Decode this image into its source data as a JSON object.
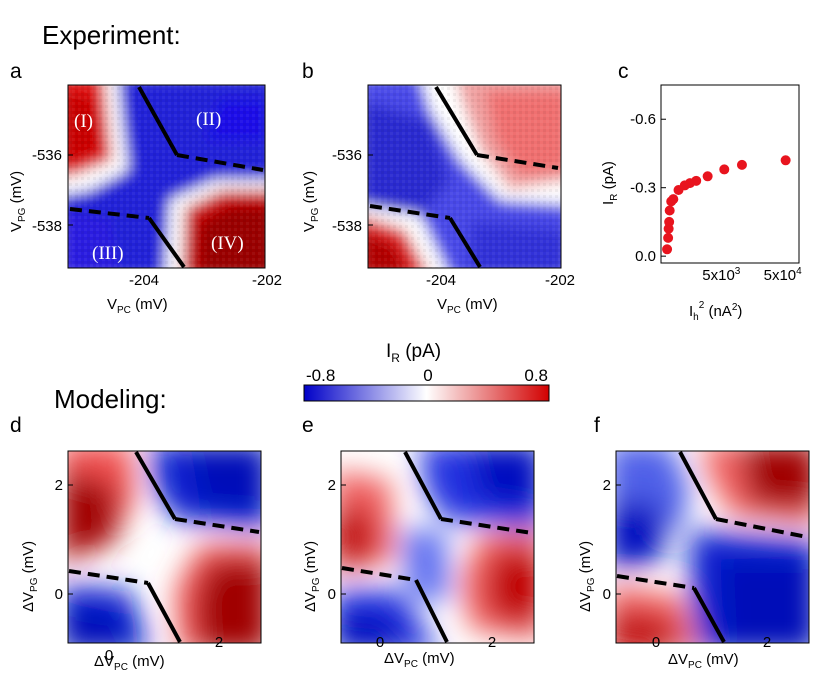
{
  "sections": {
    "experiment": "Experiment:",
    "modeling": "Modeling:"
  },
  "panels": {
    "a": "a",
    "b": "b",
    "c": "c",
    "d": "d",
    "e": "e",
    "f": "f"
  },
  "experiment_axes": {
    "y_label_main": "V",
    "y_label_sub": "PG",
    "y_label_unit": " (mV)",
    "x_label_main": "V",
    "x_label_sub": "PC",
    "x_label_unit": " (mV)",
    "y_ticks": [
      "-536",
      "-538"
    ],
    "x_ticks": [
      "-204",
      "-202"
    ]
  },
  "regions": [
    "(I)",
    "(II)",
    "(III)",
    "(IV)"
  ],
  "modeling_axes": {
    "y_label_main": "ΔV",
    "y_label_sub": "PG",
    "y_label_unit": " (mV)",
    "x_label_main": "ΔV",
    "x_label_sub": "PC",
    "x_label_unit": " (mV)",
    "y_ticks": [
      "2",
      "0"
    ],
    "x_ticks": [
      "0",
      "2"
    ]
  },
  "colorbar": {
    "label_main": "I",
    "label_sub": "R",
    "label_unit": " (pA)",
    "min_label": "-0.8",
    "mid_label": "0",
    "max_label": "0.8",
    "colors": [
      "#0000c8",
      "#ffffff",
      "#d20000"
    ],
    "range": [
      -0.8,
      0.8
    ]
  },
  "chart_data": {
    "type": "scatter",
    "title": "",
    "ylabel_main": "I",
    "ylabel_sub": "R",
    "ylabel_unit": " (pA)",
    "xlabel_main": "I",
    "xlabel_sub": "h",
    "xlabel_sup": "2",
    "xlabel_unit_pre": " (nA",
    "xlabel_unit_sup": "2",
    "xlabel_unit_post": ")",
    "y_ticks": [
      "-0.6",
      "-0.3",
      "0.0"
    ],
    "x_ticks": [
      {
        "base": "5x10",
        "exp": "3"
      },
      {
        "base": "5x10",
        "exp": "4"
      }
    ],
    "ylim": [
      0.03,
      -0.75
    ],
    "y_values": [
      -0.03,
      -0.08,
      -0.12,
      -0.15,
      -0.2,
      -0.24,
      -0.25,
      -0.29,
      -0.31,
      -0.32,
      -0.33,
      -0.35,
      -0.38,
      -0.4,
      -0.42
    ],
    "x_positions_rel": [
      0.02,
      0.03,
      0.035,
      0.04,
      0.045,
      0.06,
      0.08,
      0.13,
      0.19,
      0.24,
      0.3,
      0.41,
      0.57,
      0.74,
      1.16
    ],
    "series_color": "#e8141e"
  }
}
